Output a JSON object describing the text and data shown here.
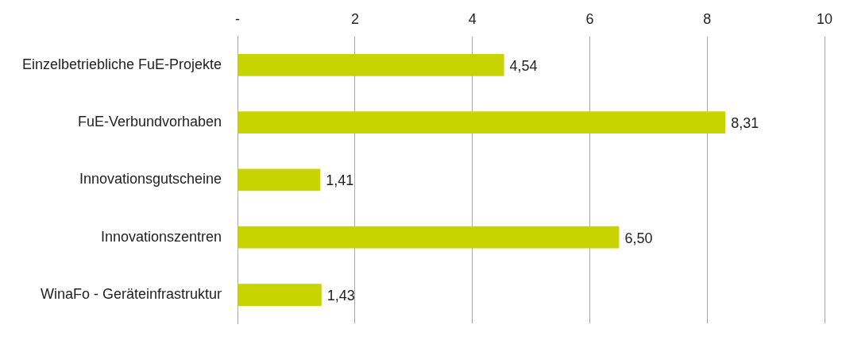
{
  "chart_data": {
    "type": "bar",
    "orientation": "horizontal",
    "categories": [
      "Einzelbetriebliche FuE-Projekte",
      "FuE-Verbundvorhaben",
      "Innovationsgutscheine",
      "Innovationszentren",
      "WinaFo - Geräteinfrastruktur"
    ],
    "values": [
      4.54,
      8.31,
      1.41,
      6.5,
      1.43
    ],
    "value_labels": [
      "4,54",
      "8,31",
      "1,41",
      "6,50",
      "1,43"
    ],
    "color": "#c8d400",
    "xlim": [
      0,
      10
    ],
    "xticks": [
      {
        "value": 0,
        "label": "-"
      },
      2,
      4,
      6,
      8,
      10
    ],
    "grid": "x"
  }
}
